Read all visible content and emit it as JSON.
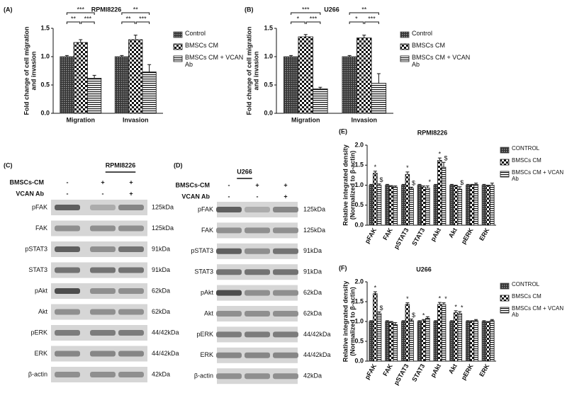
{
  "chart_data": [
    {
      "type": "bar",
      "panel": "(A)",
      "title": "RPMI8226",
      "ylabel": [
        "Fold change of cell migration",
        "and invasion"
      ],
      "categories": [
        "Migration",
        "Invasion"
      ],
      "series": [
        {
          "name": "Control",
          "color": "#444444",
          "pattern": "dense-check",
          "values": [
            1,
            1
          ],
          "errors": [
            0.02,
            0.02
          ]
        },
        {
          "name": "BMSCs CM",
          "color": "#111111",
          "pattern": "check",
          "values": [
            1.25,
            1.3
          ],
          "errors": [
            0.05,
            0.08
          ]
        },
        {
          "name": "BMSCs CM + VCAN Ab",
          "color": "#111111",
          "pattern": "hstripe",
          "values": [
            0.62,
            0.73
          ],
          "errors": [
            0.05,
            0.13
          ]
        }
      ],
      "significance": [
        [
          "***",
          "**",
          "***"
        ],
        [
          "**",
          "**",
          "***"
        ]
      ],
      "ylim": [
        0,
        1.5
      ],
      "yticks": [
        {
          "value": 0,
          "label": "0.0"
        },
        0.5,
        {
          "value": 1,
          "label": "1.0"
        },
        1.5
      ]
    },
    {
      "type": "bar",
      "panel": "(B)",
      "title": "U266",
      "ylabel": [
        "Fold change of cell migration",
        "and invasion"
      ],
      "categories": [
        "Migration",
        "Invasion"
      ],
      "series": [
        {
          "name": "Control",
          "color": "#444444",
          "pattern": "dense-check",
          "values": [
            1,
            1
          ],
          "errors": [
            0.02,
            0.02
          ]
        },
        {
          "name": "BMSCs CM",
          "color": "#111111",
          "pattern": "check",
          "values": [
            1.35,
            1.33
          ],
          "errors": [
            0.04,
            0.05
          ]
        },
        {
          "name": "BMSCs CM + VCAN Ab",
          "color": "#111111",
          "pattern": "hstripe",
          "values": [
            0.43,
            0.53
          ],
          "errors": [
            0.03,
            0.17
          ]
        }
      ],
      "significance": [
        [
          "***",
          "*",
          "***"
        ],
        [
          "**",
          "*",
          "***"
        ]
      ],
      "ylim": [
        0,
        1.5
      ],
      "yticks": [
        {
          "value": 0,
          "label": "0.0"
        },
        0.5,
        {
          "value": 1,
          "label": "1.0"
        },
        1.5
      ]
    },
    {
      "type": "bar",
      "panel": "(E)",
      "title": "RPMI8226",
      "ylabel": [
        "Relative integrated density",
        "(Normalized to β-actin)"
      ],
      "categories": [
        "pFAK",
        "FAK",
        "pSTAT3",
        "STAT3",
        "pAkt",
        "Akt",
        "pERK",
        "ERK"
      ],
      "series": [
        {
          "name": "CONTROL",
          "color": "#444444",
          "pattern": "dense-check",
          "values": [
            1,
            1,
            1,
            1,
            1,
            1,
            1,
            1
          ],
          "errors": [
            0.02,
            0.02,
            0.02,
            0.02,
            0.02,
            0.02,
            0.02,
            0.02
          ],
          "significance": [
            null,
            null,
            null,
            null,
            null,
            null,
            null,
            null
          ]
        },
        {
          "name": "BMSCs CM",
          "color": "#111111",
          "pattern": "check",
          "values": [
            1.3,
            0.97,
            1.27,
            0.95,
            1.62,
            0.98,
            1.0,
            0.98
          ],
          "errors": [
            0.05,
            0.02,
            0.06,
            0.03,
            0.06,
            0.02,
            0.02,
            0.02
          ],
          "significance": [
            "*",
            null,
            "*",
            null,
            "*",
            null,
            null,
            null
          ]
        },
        {
          "name": "BMSCs CM + VCAN Ab",
          "color": "#111111",
          "pattern": "hstripe",
          "values": [
            1.0,
            0.95,
            0.92,
            0.93,
            1.45,
            0.9,
            1.02,
            1.0
          ],
          "errors": [
            0.03,
            0.03,
            0.03,
            0.05,
            0.12,
            0.06,
            0.03,
            0.05
          ],
          "significance": [
            "$",
            null,
            "$",
            "*",
            "$",
            "$",
            null,
            null
          ]
        }
      ],
      "ylim": [
        0,
        2
      ],
      "yticks": [
        {
          "value": 0,
          "label": "0.0"
        },
        0.5,
        {
          "value": 1,
          "label": "1.0"
        },
        1.5,
        {
          "value": 2,
          "label": "2.0"
        }
      ]
    },
    {
      "type": "bar",
      "panel": "(F)",
      "title": "U266",
      "ylabel": [
        "Relative integrated density",
        "(Normalized to β-actin)"
      ],
      "categories": [
        "pFAK",
        "FAK",
        "pSTAT3",
        "STAT3",
        "pAkt",
        "Akt",
        "pERK",
        "ERK"
      ],
      "series": [
        {
          "name": "CONTROL",
          "color": "#444444",
          "pattern": "dense-check",
          "values": [
            1,
            1,
            1,
            1,
            1,
            1,
            1,
            1
          ],
          "errors": [
            0.02,
            0.02,
            0.02,
            0.02,
            0.02,
            0.02,
            0.02,
            0.02
          ],
          "significance": [
            null,
            null,
            null,
            null,
            null,
            null,
            null,
            null
          ]
        },
        {
          "name": "BMSCs CM",
          "color": "#111111",
          "pattern": "check",
          "values": [
            1.7,
            0.98,
            1.43,
            1.02,
            1.43,
            1.22,
            1.0,
            0.98
          ],
          "errors": [
            0.05,
            0.02,
            0.04,
            0.03,
            0.05,
            0.05,
            0.02,
            0.02
          ],
          "significance": [
            "*",
            null,
            "*",
            "*",
            "*",
            "*",
            null,
            null
          ]
        },
        {
          "name": "BMSCs CM + VCAN Ab",
          "color": "#111111",
          "pattern": "hstripe",
          "values": [
            1.2,
            0.92,
            1.02,
            1.08,
            1.43,
            1.2,
            1.02,
            1.02
          ],
          "errors": [
            0.04,
            0.05,
            0.04,
            0.04,
            0.04,
            0.05,
            0.03,
            0.03
          ],
          "significance": [
            "$",
            null,
            "$",
            null,
            "*",
            "*",
            null,
            null
          ]
        }
      ],
      "ylim": [
        0,
        2
      ],
      "yticks": [
        {
          "value": 0,
          "label": "0.0"
        },
        0.5,
        {
          "value": 1,
          "label": "1.0"
        },
        1.5,
        {
          "value": 2,
          "label": "2.0"
        }
      ]
    }
  ],
  "blots": [
    {
      "panel": "(C)",
      "title": "RPMI8226",
      "conditions": [
        {
          "label": "BMSCs-CM",
          "signs": [
            "-",
            "+",
            "+"
          ]
        },
        {
          "label": "VCAN Ab",
          "signs": [
            "-",
            "-",
            "+"
          ]
        }
      ],
      "bands": [
        {
          "name": "pFAK",
          "size": "125kDa"
        },
        {
          "name": "FAK",
          "size": "125kDa"
        },
        {
          "name": "pSTAT3",
          "size": "91kDa"
        },
        {
          "name": "STAT3",
          "size": "91kDa"
        },
        {
          "name": "pAkt",
          "size": "62kDa"
        },
        {
          "name": "Akt",
          "size": "62kDa"
        },
        {
          "name": "pERK",
          "size": "44/42kDa"
        },
        {
          "name": "ERK",
          "size": "44/42kDa"
        },
        {
          "name": "β-actin",
          "size": "42kDa"
        }
      ]
    },
    {
      "panel": "(D)",
      "title": "U266",
      "conditions": [
        {
          "label": "BMSCs-CM",
          "signs": [
            "-",
            "+",
            "+"
          ]
        },
        {
          "label": "VCAN Ab",
          "signs": [
            "-",
            "-",
            "+"
          ]
        }
      ],
      "bands": [
        {
          "name": "pFAK",
          "size": "125kDa"
        },
        {
          "name": "FAK",
          "size": "125kDa"
        },
        {
          "name": "pSTAT3",
          "size": "91kDa"
        },
        {
          "name": "STAT3",
          "size": "91kDa"
        },
        {
          "name": "pAkt",
          "size": "62kDa"
        },
        {
          "name": "Akt",
          "size": "62kDa"
        },
        {
          "name": "pERK",
          "size": "44/42kDa"
        },
        {
          "name": "ERK",
          "size": "44/42kDa"
        },
        {
          "name": "β-actin",
          "size": "42kDa"
        }
      ]
    }
  ]
}
